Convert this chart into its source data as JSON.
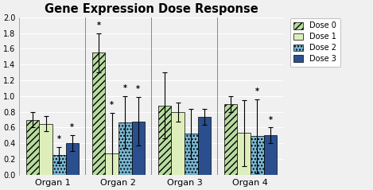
{
  "title": "Gene Expression Dose Response",
  "organs": [
    "Organ 1",
    "Organ 2",
    "Organ 3",
    "Organ 4"
  ],
  "doses": [
    "Dose 0",
    "Dose 1",
    "Dose 2",
    "Dose 3"
  ],
  "values": [
    [
      0.7,
      0.65,
      0.25,
      0.4
    ],
    [
      1.55,
      0.27,
      0.67,
      0.68
    ],
    [
      0.88,
      0.8,
      0.52,
      0.74
    ],
    [
      0.9,
      0.53,
      0.49,
      0.5
    ]
  ],
  "errors": [
    [
      0.1,
      0.1,
      0.1,
      0.1
    ],
    [
      0.25,
      0.52,
      0.33,
      0.31
    ],
    [
      0.42,
      0.12,
      0.32,
      0.1
    ],
    [
      0.1,
      0.42,
      0.47,
      0.1
    ]
  ],
  "asterisks": [
    [
      false,
      false,
      true,
      true
    ],
    [
      true,
      true,
      true,
      true
    ],
    [
      false,
      false,
      false,
      false
    ],
    [
      false,
      false,
      true,
      true
    ]
  ],
  "ylim": [
    0,
    2.0
  ],
  "yticks": [
    0,
    0.2,
    0.4,
    0.6,
    0.8,
    1.0,
    1.2,
    1.4,
    1.6,
    1.8,
    2.0
  ],
  "bar_colors": [
    "#b8dca0",
    "#ddeebb",
    "#7ab8d4",
    "#2b4f8e"
  ],
  "hatches": [
    "////",
    "",
    "....",
    ""
  ],
  "bar_width": 0.2,
  "figsize": [
    4.69,
    2.39
  ],
  "dpi": 100
}
